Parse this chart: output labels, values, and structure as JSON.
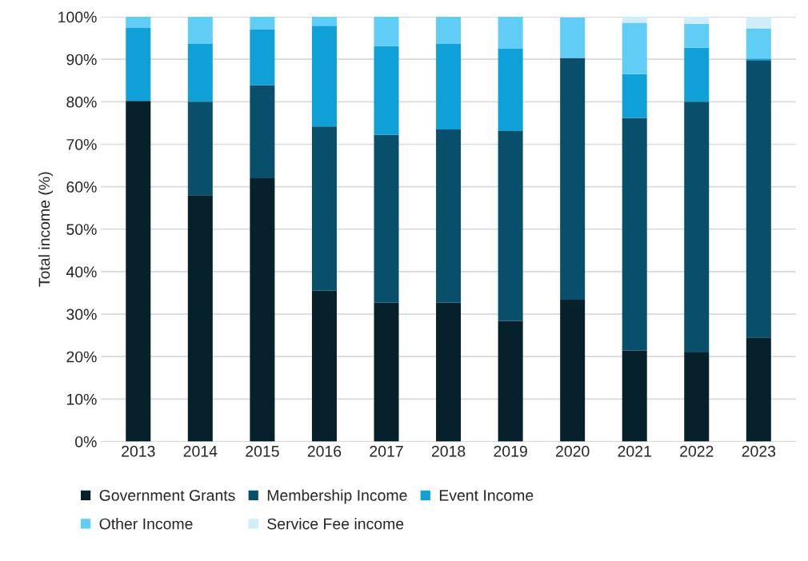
{
  "chart_data": {
    "type": "bar",
    "stacked": true,
    "ylabel": "Total income (%)",
    "categories": [
      "2013",
      "2014",
      "2015",
      "2016",
      "2017",
      "2018",
      "2019",
      "2020",
      "2021",
      "2022",
      "2023"
    ],
    "series": [
      {
        "name": "Government Grants",
        "color": "#06202c",
        "values": [
          80.2,
          58.0,
          62.0,
          35.5,
          32.7,
          32.7,
          28.4,
          33.4,
          21.4,
          21.0,
          24.5
        ]
      },
      {
        "name": "Membership Income",
        "color": "#074f6a",
        "values": [
          0,
          22.0,
          21.9,
          38.7,
          39.5,
          40.8,
          44.7,
          56.9,
          54.8,
          59.0,
          65.3
        ]
      },
      {
        "name": "Event Income",
        "color": "#0ea0d6",
        "values": [
          17.2,
          13.6,
          13.2,
          23.7,
          20.9,
          20.1,
          19.4,
          0,
          10.3,
          12.7,
          0.4
        ]
      },
      {
        "name": "Other Income",
        "color": "#5fcdf5",
        "values": [
          2.6,
          6.4,
          2.9,
          2.1,
          6.9,
          6.4,
          7.5,
          9.5,
          12.1,
          5.6,
          7.1
        ]
      },
      {
        "name": "Service Fee income",
        "color": "#cdeefa",
        "values": [
          0,
          0,
          0,
          0,
          0,
          0,
          0,
          0,
          1.4,
          1.7,
          2.7
        ]
      }
    ],
    "ylim": [
      0,
      100
    ],
    "yticks": [
      {
        "value": 0,
        "label": "0%"
      },
      {
        "value": 10,
        "label": "10%"
      },
      {
        "value": 20,
        "label": "20%"
      },
      {
        "value": 30,
        "label": "30%"
      },
      {
        "value": 40,
        "label": "40%"
      },
      {
        "value": 50,
        "label": "50%"
      },
      {
        "value": 60,
        "label": "60%"
      },
      {
        "value": 70,
        "label": "70%"
      },
      {
        "value": 80,
        "label": "80%"
      },
      {
        "value": 90,
        "label": "90%"
      },
      {
        "value": 100,
        "label": "100%"
      }
    ],
    "grid": "y",
    "legend": "bottom"
  }
}
